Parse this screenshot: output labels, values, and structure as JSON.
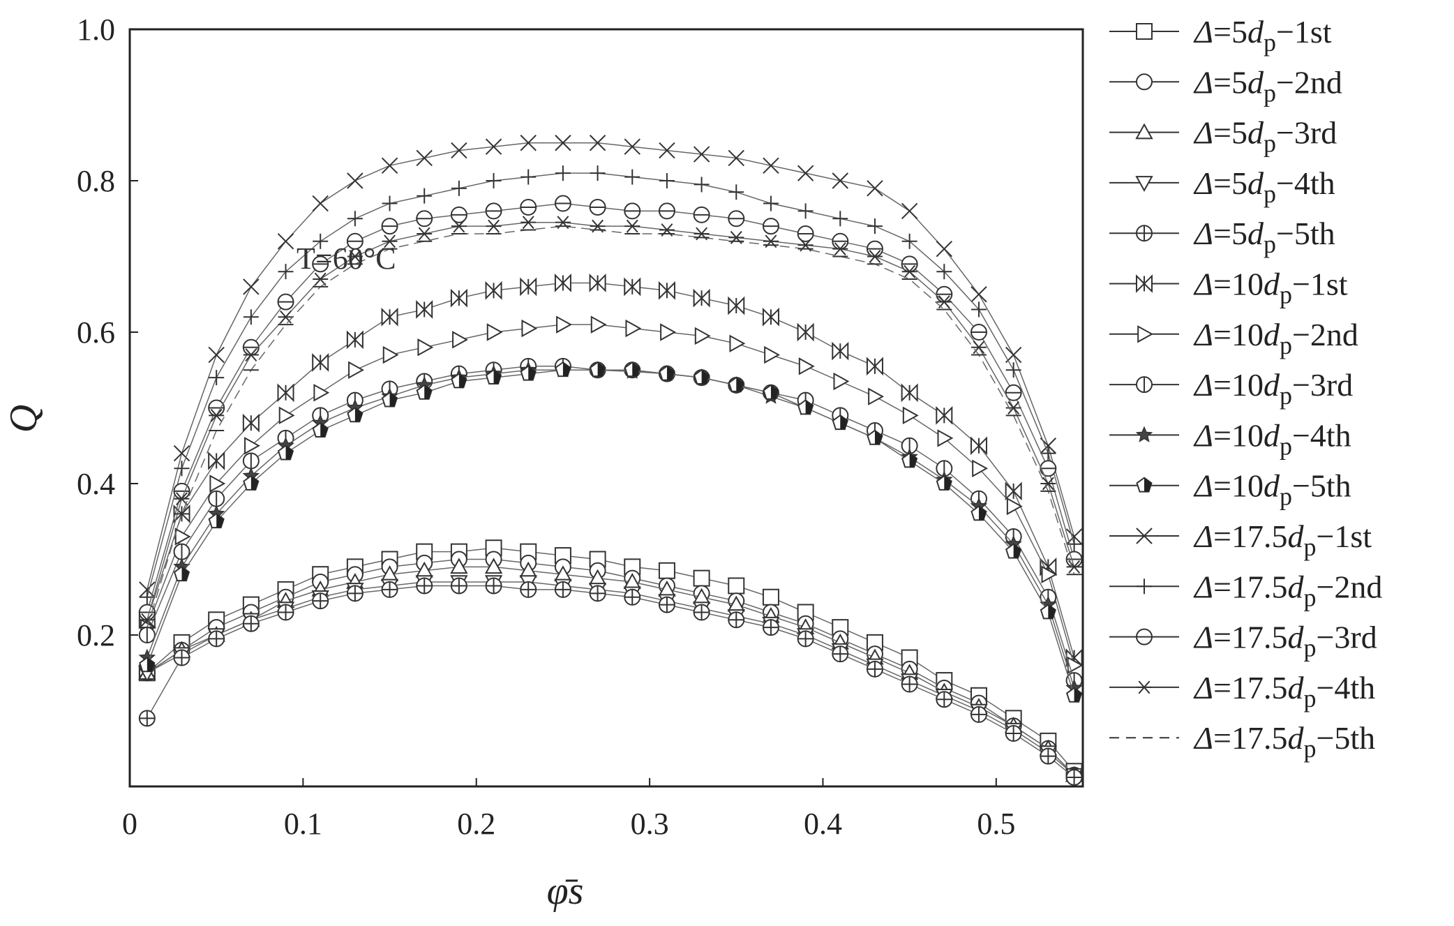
{
  "chart_data": {
    "type": "scatter",
    "title": "",
    "xlabel": "φ̄s",
    "ylabel": "Q",
    "xlim": [
      0,
      0.55
    ],
    "ylim": [
      0,
      1.0
    ],
    "x_ticks": [
      "0",
      "0.1",
      "0.2",
      "0.3",
      "0.4",
      "0.5"
    ],
    "y_ticks": [
      "0.2",
      "0.4",
      "0.6",
      "0.8",
      "1.0"
    ],
    "grid": false,
    "legend_position": "right, outside plot",
    "annotation": "T=60°C",
    "series": [
      {
        "name": "Δ=5dp−1st",
        "marker": "square",
        "x": [
          0.01,
          0.03,
          0.05,
          0.07,
          0.09,
          0.11,
          0.13,
          0.15,
          0.17,
          0.19,
          0.21,
          0.23,
          0.25,
          0.27,
          0.29,
          0.31,
          0.33,
          0.35,
          0.37,
          0.39,
          0.41,
          0.43,
          0.45,
          0.47,
          0.49,
          0.51,
          0.53,
          0.545
        ],
        "y": [
          0.15,
          0.19,
          0.22,
          0.24,
          0.26,
          0.28,
          0.29,
          0.3,
          0.31,
          0.31,
          0.315,
          0.31,
          0.305,
          0.3,
          0.29,
          0.285,
          0.275,
          0.265,
          0.25,
          0.23,
          0.21,
          0.19,
          0.17,
          0.14,
          0.12,
          0.09,
          0.06,
          0.02
        ]
      },
      {
        "name": "Δ=5dp−2nd",
        "marker": "circle",
        "x": [
          0.01,
          0.03,
          0.05,
          0.07,
          0.09,
          0.11,
          0.13,
          0.15,
          0.17,
          0.19,
          0.21,
          0.23,
          0.25,
          0.27,
          0.29,
          0.31,
          0.33,
          0.35,
          0.37,
          0.39,
          0.41,
          0.43,
          0.45,
          0.47,
          0.49,
          0.51,
          0.53,
          0.545
        ],
        "y": [
          0.15,
          0.18,
          0.21,
          0.23,
          0.25,
          0.27,
          0.28,
          0.29,
          0.295,
          0.3,
          0.3,
          0.295,
          0.29,
          0.285,
          0.275,
          0.265,
          0.255,
          0.245,
          0.23,
          0.215,
          0.195,
          0.175,
          0.155,
          0.13,
          0.11,
          0.08,
          0.05,
          0.015
        ]
      },
      {
        "name": "Δ=5dp−3rd",
        "marker": "triangle-up",
        "x": [
          0.01,
          0.03,
          0.05,
          0.07,
          0.09,
          0.11,
          0.13,
          0.15,
          0.17,
          0.19,
          0.21,
          0.23,
          0.25,
          0.27,
          0.29,
          0.31,
          0.33,
          0.35,
          0.37,
          0.39,
          0.41,
          0.43,
          0.45,
          0.47,
          0.49,
          0.51,
          0.53,
          0.545
        ],
        "y": [
          0.15,
          0.18,
          0.2,
          0.22,
          0.245,
          0.26,
          0.27,
          0.28,
          0.285,
          0.29,
          0.29,
          0.285,
          0.28,
          0.275,
          0.27,
          0.26,
          0.25,
          0.24,
          0.225,
          0.21,
          0.19,
          0.17,
          0.15,
          0.125,
          0.105,
          0.08,
          0.05,
          0.015
        ]
      },
      {
        "name": "Δ=5dp−4th",
        "marker": "triangle-down",
        "x": [
          0.01,
          0.03,
          0.05,
          0.07,
          0.09,
          0.11,
          0.13,
          0.15,
          0.17,
          0.19,
          0.21,
          0.23,
          0.25,
          0.27,
          0.29,
          0.31,
          0.33,
          0.35,
          0.37,
          0.39,
          0.41,
          0.43,
          0.45,
          0.47,
          0.49,
          0.51,
          0.53,
          0.545
        ],
        "y": [
          0.15,
          0.175,
          0.2,
          0.22,
          0.235,
          0.25,
          0.26,
          0.265,
          0.27,
          0.27,
          0.27,
          0.27,
          0.265,
          0.26,
          0.255,
          0.245,
          0.235,
          0.225,
          0.215,
          0.2,
          0.18,
          0.16,
          0.14,
          0.12,
          0.1,
          0.075,
          0.045,
          0.015
        ]
      },
      {
        "name": "Δ=5dp−5th",
        "marker": "circle-plus",
        "x": [
          0.01,
          0.03,
          0.05,
          0.07,
          0.09,
          0.11,
          0.13,
          0.15,
          0.17,
          0.19,
          0.21,
          0.23,
          0.25,
          0.27,
          0.29,
          0.31,
          0.33,
          0.35,
          0.37,
          0.39,
          0.41,
          0.43,
          0.45,
          0.47,
          0.49,
          0.51,
          0.53,
          0.545
        ],
        "y": [
          0.09,
          0.17,
          0.195,
          0.215,
          0.23,
          0.245,
          0.255,
          0.26,
          0.265,
          0.265,
          0.265,
          0.26,
          0.26,
          0.255,
          0.25,
          0.24,
          0.23,
          0.22,
          0.21,
          0.195,
          0.175,
          0.155,
          0.135,
          0.115,
          0.095,
          0.07,
          0.04,
          0.012
        ]
      },
      {
        "name": "Δ=10dp−1st",
        "marker": "bowtie",
        "x": [
          0.01,
          0.03,
          0.05,
          0.07,
          0.09,
          0.11,
          0.13,
          0.15,
          0.17,
          0.19,
          0.21,
          0.23,
          0.25,
          0.27,
          0.29,
          0.31,
          0.33,
          0.35,
          0.37,
          0.39,
          0.41,
          0.43,
          0.45,
          0.47,
          0.49,
          0.51,
          0.53,
          0.545
        ],
        "y": [
          0.22,
          0.36,
          0.43,
          0.48,
          0.52,
          0.56,
          0.59,
          0.62,
          0.63,
          0.645,
          0.655,
          0.66,
          0.665,
          0.665,
          0.66,
          0.655,
          0.645,
          0.635,
          0.62,
          0.6,
          0.575,
          0.555,
          0.52,
          0.49,
          0.45,
          0.39,
          0.29,
          0.17
        ]
      },
      {
        "name": "Δ=10dp−2nd",
        "marker": "triangle-right",
        "x": [
          0.01,
          0.03,
          0.05,
          0.07,
          0.09,
          0.11,
          0.13,
          0.15,
          0.17,
          0.19,
          0.21,
          0.23,
          0.25,
          0.27,
          0.29,
          0.31,
          0.33,
          0.35,
          0.37,
          0.39,
          0.41,
          0.43,
          0.45,
          0.47,
          0.49,
          0.51,
          0.53,
          0.545
        ],
        "y": [
          0.21,
          0.33,
          0.4,
          0.45,
          0.49,
          0.52,
          0.55,
          0.57,
          0.58,
          0.59,
          0.6,
          0.605,
          0.61,
          0.61,
          0.605,
          0.6,
          0.595,
          0.585,
          0.57,
          0.555,
          0.535,
          0.515,
          0.49,
          0.46,
          0.42,
          0.37,
          0.28,
          0.16
        ]
      },
      {
        "name": "Δ=10dp−3rd",
        "marker": "circle-vline",
        "x": [
          0.01,
          0.03,
          0.05,
          0.07,
          0.09,
          0.11,
          0.13,
          0.15,
          0.17,
          0.19,
          0.21,
          0.23,
          0.25,
          0.27,
          0.29,
          0.31,
          0.33,
          0.35,
          0.37,
          0.39,
          0.41,
          0.43,
          0.45,
          0.47,
          0.49,
          0.51,
          0.53,
          0.545
        ],
        "y": [
          0.2,
          0.31,
          0.38,
          0.43,
          0.46,
          0.49,
          0.51,
          0.525,
          0.535,
          0.545,
          0.55,
          0.555,
          0.555,
          0.55,
          0.55,
          0.545,
          0.54,
          0.53,
          0.52,
          0.51,
          0.49,
          0.47,
          0.45,
          0.42,
          0.38,
          0.33,
          0.25,
          0.14
        ]
      },
      {
        "name": "Δ=10dp−4th",
        "marker": "star",
        "x": [
          0.01,
          0.03,
          0.05,
          0.07,
          0.09,
          0.11,
          0.13,
          0.15,
          0.17,
          0.19,
          0.21,
          0.23,
          0.25,
          0.27,
          0.29,
          0.31,
          0.33,
          0.35,
          0.37,
          0.39,
          0.41,
          0.43,
          0.45,
          0.47,
          0.49,
          0.51,
          0.53,
          0.545
        ],
        "y": [
          0.17,
          0.29,
          0.36,
          0.41,
          0.45,
          0.48,
          0.5,
          0.515,
          0.53,
          0.54,
          0.545,
          0.55,
          0.55,
          0.55,
          0.548,
          0.545,
          0.54,
          0.53,
          0.515,
          0.5,
          0.48,
          0.46,
          0.435,
          0.405,
          0.37,
          0.32,
          0.24,
          0.13
        ]
      },
      {
        "name": "Δ=10dp−5th",
        "marker": "pentagon-half",
        "x": [
          0.01,
          0.03,
          0.05,
          0.07,
          0.09,
          0.11,
          0.13,
          0.15,
          0.17,
          0.19,
          0.21,
          0.23,
          0.25,
          0.27,
          0.29,
          0.31,
          0.33,
          0.35,
          0.37,
          0.39,
          0.41,
          0.43,
          0.45,
          0.47,
          0.49,
          0.51,
          0.53,
          0.545
        ],
        "y": [
          0.16,
          0.28,
          0.35,
          0.4,
          0.44,
          0.47,
          0.49,
          0.51,
          0.52,
          0.535,
          0.54,
          0.545,
          0.55,
          0.55,
          0.55,
          0.545,
          0.54,
          0.53,
          0.52,
          0.5,
          0.48,
          0.46,
          0.43,
          0.4,
          0.36,
          0.31,
          0.23,
          0.12
        ]
      },
      {
        "name": "Δ=17.5dp−1st",
        "marker": "x",
        "x": [
          0.01,
          0.03,
          0.05,
          0.07,
          0.09,
          0.11,
          0.13,
          0.15,
          0.17,
          0.19,
          0.21,
          0.23,
          0.25,
          0.27,
          0.29,
          0.31,
          0.33,
          0.35,
          0.37,
          0.39,
          0.41,
          0.43,
          0.45,
          0.47,
          0.49,
          0.51,
          0.53,
          0.545
        ],
        "y": [
          0.26,
          0.44,
          0.57,
          0.66,
          0.72,
          0.77,
          0.8,
          0.82,
          0.83,
          0.84,
          0.845,
          0.85,
          0.85,
          0.85,
          0.845,
          0.84,
          0.835,
          0.83,
          0.82,
          0.81,
          0.8,
          0.79,
          0.76,
          0.71,
          0.65,
          0.57,
          0.45,
          0.33
        ]
      },
      {
        "name": "Δ=17.5dp−2nd",
        "marker": "plus",
        "x": [
          0.01,
          0.03,
          0.05,
          0.07,
          0.09,
          0.11,
          0.13,
          0.15,
          0.17,
          0.19,
          0.21,
          0.23,
          0.25,
          0.27,
          0.29,
          0.31,
          0.33,
          0.35,
          0.37,
          0.39,
          0.41,
          0.43,
          0.45,
          0.47,
          0.49,
          0.51,
          0.53,
          0.545
        ],
        "y": [
          0.25,
          0.42,
          0.54,
          0.62,
          0.68,
          0.72,
          0.75,
          0.77,
          0.78,
          0.79,
          0.8,
          0.805,
          0.81,
          0.81,
          0.805,
          0.8,
          0.795,
          0.785,
          0.77,
          0.76,
          0.75,
          0.74,
          0.72,
          0.68,
          0.63,
          0.55,
          0.44,
          0.32
        ]
      },
      {
        "name": "Δ=17.5dp−3rd",
        "marker": "circle-hline",
        "x": [
          0.01,
          0.03,
          0.05,
          0.07,
          0.09,
          0.11,
          0.13,
          0.15,
          0.17,
          0.19,
          0.21,
          0.23,
          0.25,
          0.27,
          0.29,
          0.31,
          0.33,
          0.35,
          0.37,
          0.39,
          0.41,
          0.43,
          0.45,
          0.47,
          0.49,
          0.51,
          0.53,
          0.545
        ],
        "y": [
          0.23,
          0.39,
          0.5,
          0.58,
          0.64,
          0.69,
          0.72,
          0.74,
          0.75,
          0.755,
          0.76,
          0.765,
          0.77,
          0.765,
          0.76,
          0.76,
          0.755,
          0.75,
          0.74,
          0.73,
          0.72,
          0.71,
          0.69,
          0.65,
          0.6,
          0.52,
          0.42,
          0.3
        ]
      },
      {
        "name": "Δ=17.5dp−4th",
        "marker": "asterisk",
        "x": [
          0.01,
          0.03,
          0.05,
          0.07,
          0.09,
          0.11,
          0.13,
          0.15,
          0.17,
          0.19,
          0.21,
          0.23,
          0.25,
          0.27,
          0.29,
          0.31,
          0.33,
          0.35,
          0.37,
          0.39,
          0.41,
          0.43,
          0.45,
          0.47,
          0.49,
          0.51,
          0.53,
          0.545
        ],
        "y": [
          0.22,
          0.38,
          0.49,
          0.57,
          0.62,
          0.67,
          0.7,
          0.72,
          0.73,
          0.74,
          0.74,
          0.745,
          0.745,
          0.74,
          0.74,
          0.735,
          0.73,
          0.725,
          0.72,
          0.715,
          0.71,
          0.7,
          0.68,
          0.64,
          0.58,
          0.5,
          0.4,
          0.29
        ]
      },
      {
        "name": "Δ=17.5dp−5th",
        "marker": "dash",
        "x": [
          0.01,
          0.03,
          0.05,
          0.07,
          0.09,
          0.11,
          0.13,
          0.15,
          0.17,
          0.19,
          0.21,
          0.23,
          0.25,
          0.27,
          0.29,
          0.31,
          0.33,
          0.35,
          0.37,
          0.39,
          0.41,
          0.43,
          0.45,
          0.47,
          0.49,
          0.51,
          0.53,
          0.545
        ],
        "y": [
          0.21,
          0.36,
          0.47,
          0.55,
          0.61,
          0.66,
          0.69,
          0.71,
          0.72,
          0.73,
          0.73,
          0.735,
          0.74,
          0.735,
          0.73,
          0.73,
          0.725,
          0.72,
          0.715,
          0.71,
          0.7,
          0.69,
          0.67,
          0.63,
          0.57,
          0.49,
          0.39,
          0.28
        ]
      }
    ]
  }
}
